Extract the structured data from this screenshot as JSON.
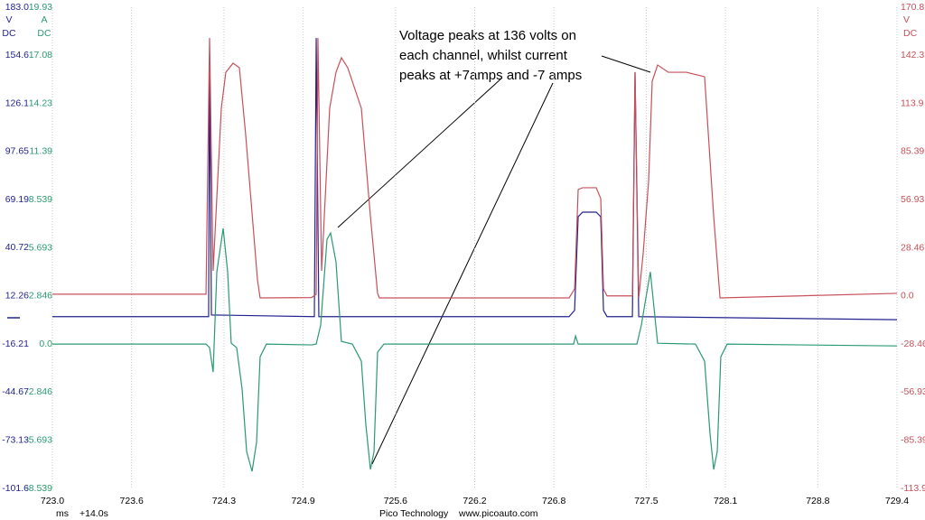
{
  "chart_data": {
    "type": "line",
    "annotation": [
      "Voltage peaks at 136 volts on",
      "each channel, whilst current",
      "peaks at +7amps and -7 amps"
    ],
    "x_unit": "ms",
    "x_offset": "+14.0s",
    "footer": [
      "Pico Technology",
      "www.picoauto.com"
    ],
    "axis_units": {
      "y": [
        "V",
        "DC"
      ],
      "y3": [
        "A",
        "DC"
      ],
      "y2": [
        "V",
        "DC"
      ]
    },
    "xlim": [
      723.0,
      729.4
    ],
    "xticks": [
      {
        "value": 723.0,
        "label": "723.0"
      },
      723.6,
      724.3,
      724.9,
      725.6,
      726.2,
      726.8,
      727.5,
      728.1,
      728.8,
      729.4
    ],
    "ylim": [
      -101.6,
      183.0
    ],
    "yticks": [
      {
        "value": 183.0,
        "label": "183.0"
      },
      154.6,
      126.1,
      97.65,
      69.19,
      40.72,
      12.26,
      -16.21,
      -44.67,
      -73.13,
      -101.6
    ],
    "y3lim": [
      -8.539,
      19.93
    ],
    "y3ticks": [
      19.93,
      17.08,
      14.23,
      11.39,
      8.539,
      5.693,
      2.846,
      {
        "value": 0.0,
        "label": "0.0"
      },
      -2.846,
      -5.693,
      -8.539
    ],
    "y2lim": [
      -113.9,
      170.8
    ],
    "y2ticks": [
      170.8,
      142.3,
      113.9,
      85.39,
      56.93,
      28.46,
      {
        "value": 0.0,
        "label": "0.0"
      },
      -28.46,
      -56.93,
      -85.39,
      -113.9
    ],
    "grid": true,
    "series": [
      {
        "axis": "y",
        "color": "#23238e",
        "x": [
          723.0,
          724.164,
          724.184,
          724.191,
          724.205,
          724.985,
          724.999,
          725.019,
          726.915,
          726.957,
          726.984,
          727.018,
          727.121,
          727.155,
          727.176,
          727.203,
          727.395,
          727.415,
          727.443,
          729.4
        ],
        "values": [
          0,
          0,
          0,
          154.2,
          1,
          0,
          164.8,
          0,
          0,
          3.7,
          59.1,
          61.8,
          61.8,
          59.1,
          3.7,
          0,
          0,
          144.6,
          0,
          -1.8
        ]
      },
      {
        "axis": "y3",
        "color": "#2a9a70",
        "x": [
          723.0,
          724.164,
          724.191,
          724.218,
          724.246,
          724.294,
          724.328,
          724.355,
          724.396,
          724.437,
          724.472,
          724.513,
          724.547,
          724.574,
          724.622,
          724.964,
          724.999,
          725.033,
          725.081,
          725.108,
          725.149,
          725.19,
          725.273,
          725.341,
          725.375,
          725.41,
          725.437,
          725.464,
          725.512,
          726.95,
          726.964,
          726.984,
          727.429,
          727.463,
          727.497,
          727.531,
          727.586,
          727.873,
          727.942,
          727.983,
          728.011,
          728.038,
          728.065,
          728.113,
          729.4
        ],
        "values": [
          0,
          0,
          -0.21,
          -1.66,
          4.27,
          6.84,
          4.27,
          0.05,
          -0.21,
          -2.62,
          -6.36,
          -7.53,
          -5.82,
          -0.75,
          0,
          -0.05,
          0,
          1.12,
          6.2,
          6.57,
          4.86,
          0.16,
          0,
          -1.01,
          -4.75,
          -7.42,
          -6.36,
          -0.48,
          0,
          0,
          0.48,
          0,
          0,
          1.12,
          2.72,
          4.27,
          0.05,
          0,
          -1.01,
          -5.29,
          -7.42,
          -6.36,
          -0.75,
          0,
          -0.11
        ]
      },
      {
        "axis": "y2",
        "color": "#c8505a",
        "x": [
          723.0,
          724.164,
          724.191,
          724.218,
          724.28,
          724.314,
          724.369,
          724.417,
          724.465,
          724.554,
          724.574,
          724.964,
          724.999,
          725.012,
          725.04,
          725.101,
          725.149,
          725.19,
          725.238,
          725.341,
          725.41,
          725.464,
          725.478,
          726.915,
          726.957,
          726.984,
          727.018,
          727.121,
          727.155,
          727.176,
          727.203,
          727.395,
          727.415,
          727.443,
          727.477,
          727.518,
          727.545,
          727.586,
          727.668,
          727.805,
          727.942,
          728.011,
          728.059,
          729.4
        ],
        "values": [
          1,
          1,
          152.6,
          14.8,
          111,
          132.3,
          137.7,
          135,
          95,
          9.5,
          -1.2,
          -1,
          1,
          152.6,
          14.8,
          111,
          132.3,
          140.9,
          135,
          111,
          46.9,
          1.5,
          -1.2,
          -1.2,
          4.1,
          62.9,
          64,
          64,
          57.6,
          4.1,
          0,
          0,
          132.3,
          -1.2,
          25.5,
          68.2,
          127,
          136.6,
          132.3,
          132.3,
          129.7,
          46.9,
          -1.2,
          1.5
        ]
      }
    ]
  }
}
